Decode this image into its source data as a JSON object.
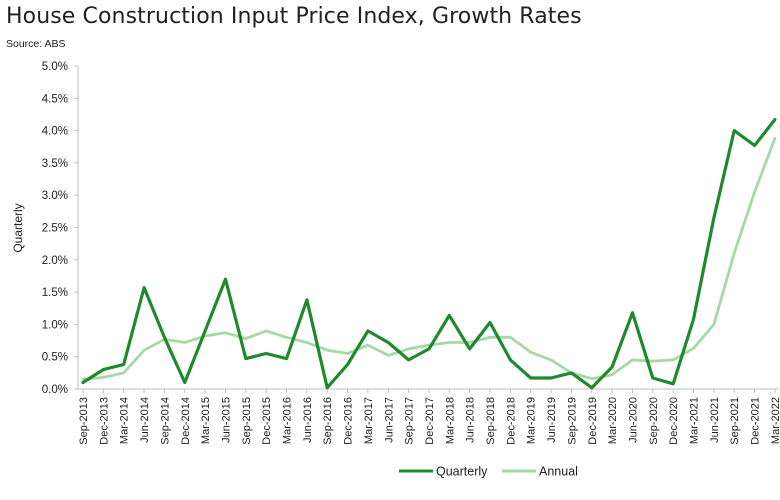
{
  "chart_data": {
    "type": "line",
    "title": "House Construction Input Price Index, Growth Rates",
    "subtitle": "Source: ABS",
    "xlabel": "",
    "ylabel": "Quarterly",
    "ylim": [
      0,
      5
    ],
    "ytick_labels": [
      "0.0%",
      "0.5%",
      "1.0%",
      "1.5%",
      "2.0%",
      "2.5%",
      "3.0%",
      "3.5%",
      "4.0%",
      "4.5%",
      "5.0%"
    ],
    "grid": false,
    "legend_position": "bottom",
    "categories": [
      "Sep-2013",
      "Dec-2013",
      "Mar-2014",
      "Jun-2014",
      "Sep-2014",
      "Dec-2014",
      "Mar-2015",
      "Jun-2015",
      "Sep-2015",
      "Dec-2015",
      "Mar-2016",
      "Jun-2016",
      "Sep-2016",
      "Dec-2016",
      "Mar-2017",
      "Jun-2017",
      "Sep-2017",
      "Dec-2017",
      "Mar-2018",
      "Jun-2018",
      "Sep-2018",
      "Dec-2018",
      "Mar-2019",
      "Jun-2019",
      "Sep-2019",
      "Dec-2019",
      "Mar-2020",
      "Jun-2020",
      "Sep-2020",
      "Dec-2020",
      "Mar-2021",
      "Jun-2021",
      "Sep-2021",
      "Dec-2021",
      "Mar-2022"
    ],
    "series": [
      {
        "name": "Quarterly",
        "color": "#1e8a2e",
        "values": [
          0.1,
          0.3,
          0.38,
          1.57,
          0.8,
          0.1,
          0.9,
          1.7,
          0.47,
          0.55,
          0.47,
          1.38,
          0.02,
          0.38,
          0.9,
          0.72,
          0.45,
          0.62,
          1.14,
          0.62,
          1.03,
          0.45,
          0.17,
          0.17,
          0.25,
          0.02,
          0.34,
          1.18,
          0.17,
          0.08,
          1.08,
          2.65,
          4.0,
          3.77,
          4.17
        ]
      },
      {
        "name": "Annual",
        "color": "#a6d9a6",
        "values": [
          0.15,
          0.18,
          0.25,
          0.6,
          0.77,
          0.72,
          0.82,
          0.87,
          0.78,
          0.9,
          0.8,
          0.72,
          0.6,
          0.55,
          0.68,
          0.52,
          0.62,
          0.68,
          0.72,
          0.72,
          0.8,
          0.8,
          0.57,
          0.45,
          0.25,
          0.16,
          0.22,
          0.45,
          0.43,
          0.45,
          0.63,
          1.0,
          2.1,
          3.05,
          3.88
        ]
      }
    ]
  }
}
